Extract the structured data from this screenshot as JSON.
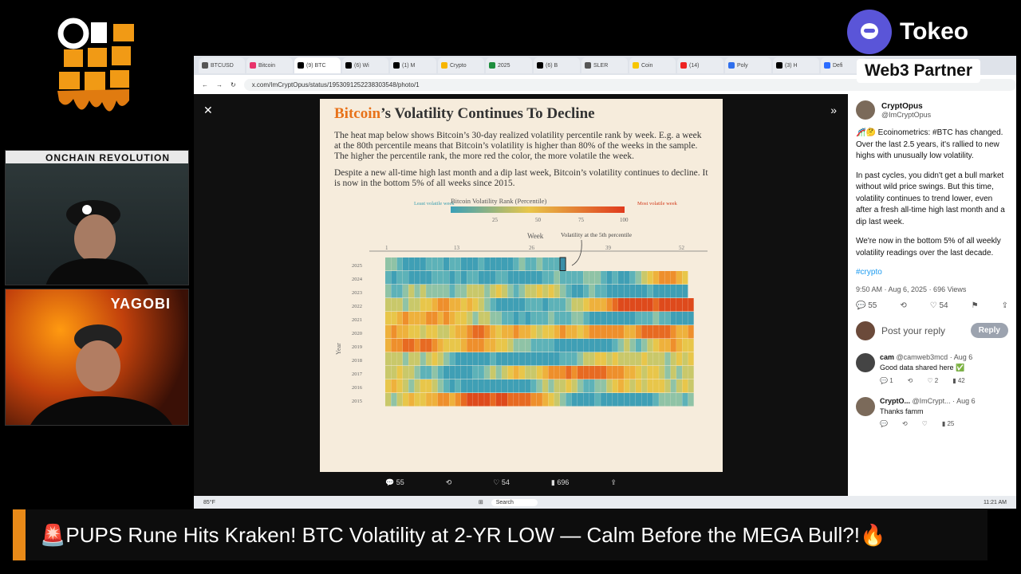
{
  "brand": {
    "tokeo": "Tokeo",
    "web3": "Web3 Partner",
    "cam1_label": "ONCHAIN REVOLUTION",
    "cam2_label": "YAGOBI"
  },
  "browser": {
    "tabs": [
      "BTCUSD",
      "Bitcoin",
      "(9) BTC",
      "(6) Wi",
      "(1) M",
      "Crypto",
      "2025",
      "(6) B",
      "SLER",
      "Coin",
      "(14)",
      "Poly",
      "(3) H",
      "Defi"
    ],
    "url": "x.com/ImCryptOpus/status/1953091252238303548/photo/1"
  },
  "image": {
    "title_accent": "Bitcoin",
    "title_rest": "’s Volatility Continues To Decline",
    "para1": "The heat map below shows Bitcoin’s 30-day realized volatility percentile rank by week. E.g. a week at the 80th percentile means that Bitcoin’s volatility is higher than 80% of the weeks in the sample. The higher the percentile rank, the more red the color, the more volatile the week.",
    "para2": "Despite a new all-time high last month and a dip last week, Bitcoin’s volatility continues to decline. It is now in the bottom 5% of all weeks since 2015.",
    "legend_title": "Bitcoin Volatility Rank (Percentile)",
    "legend_least": "Least volatile week",
    "legend_most": "Most volatile week",
    "legend_ticks": [
      "25",
      "50",
      "75",
      "100"
    ],
    "week_label": "Week",
    "week_ticks": [
      "1",
      "13",
      "26",
      "39",
      "52"
    ],
    "annotation": "Volatility at the 5th percentile",
    "year_label": "Year",
    "years": [
      "2025",
      "2024",
      "2023",
      "2022",
      "2021",
      "2020",
      "2019",
      "2018",
      "2017",
      "2016",
      "2015"
    ]
  },
  "actions": {
    "replies": "55",
    "reposts": "",
    "likes": "54",
    "views": "696"
  },
  "sidebar": {
    "author": "CryptOpus",
    "handle": "@ImCryptOpus",
    "text1": "🎢🤔 Ecoinometrics: #BTC has changed. Over the last 2.5 years, it's rallied to new highs with unusually low volatility.",
    "text2": "In past cycles, you didn't get a bull market without wild price swings. But this time, volatility continues to trend lower, even after a fresh all-time high last month and a dip last week.",
    "text3": "We're now in the bottom 5% of all weekly volatility readings over the last decade.",
    "hashtag": "#crypto",
    "meta": "9:50 AM · Aug 6, 2025 · 696 Views",
    "stats": {
      "replies": "55",
      "likes": "54"
    },
    "reply_placeholder": "Post your reply",
    "reply_button": "Reply",
    "comments": [
      {
        "name": "cam",
        "handle": "@camweb3mcd · Aug 6",
        "text": "Good data shared here ✅",
        "s1": "1",
        "s2": "2",
        "s3": "42"
      },
      {
        "name": "CryptO...",
        "handle": "@ImCrypt... · Aug 6",
        "text": "Thanks famm",
        "s1": "",
        "s2": "",
        "s3": "25"
      }
    ]
  },
  "taskbar": {
    "weather": "85°F",
    "search": "Search",
    "time": "11:21 AM"
  },
  "ticker": "🚨PUPS Rune Hits Kraken! BTC Volatility at 2-YR LOW — Calm Before the MEGA Bull?!🔥"
}
